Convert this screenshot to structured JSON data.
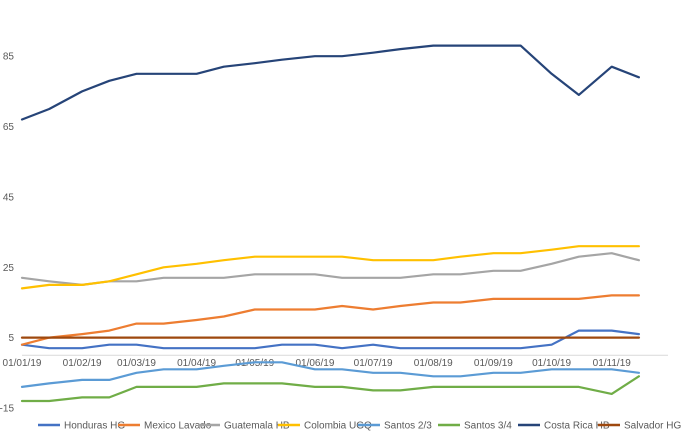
{
  "chart_data": {
    "type": "line",
    "title": "",
    "xlabel": "",
    "ylabel": "",
    "ylim": [
      -15,
      95
    ],
    "y_ticks": [
      -15,
      5,
      25,
      45,
      65,
      85
    ],
    "y_tick_labels": [
      "-15",
      "5",
      "25",
      "45",
      "65",
      "85"
    ],
    "x_tick_labels": [
      "01/01/19",
      "01/02/19",
      "01/03/19",
      "01/04/19",
      "01/05/19",
      "01/06/19",
      "01/07/19",
      "01/08/19",
      "01/09/19",
      "01/10/19",
      "01/11/19"
    ],
    "x": [
      "01/01/19",
      "15/01/19",
      "01/02/19",
      "15/02/19",
      "01/03/19",
      "15/03/19",
      "01/04/19",
      "15/04/19",
      "01/05/19",
      "15/05/19",
      "01/06/19",
      "15/06/19",
      "01/07/19",
      "15/07/19",
      "01/08/19",
      "15/08/19",
      "01/09/19",
      "15/09/19",
      "01/10/19",
      "15/10/19",
      "01/11/19",
      "15/11/19"
    ],
    "grid": false,
    "legend_position": "bottom",
    "series": [
      {
        "name": "Honduras HG",
        "color": "#4472C4",
        "values": [
          3,
          2,
          2,
          3,
          3,
          2,
          2,
          2,
          2,
          3,
          3,
          2,
          3,
          2,
          2,
          2,
          2,
          2,
          3,
          7,
          7,
          6
        ]
      },
      {
        "name": "Mexico Lavado",
        "color": "#ED7D31",
        "values": [
          3,
          5,
          6,
          7,
          9,
          9,
          10,
          11,
          13,
          13,
          13,
          14,
          13,
          14,
          15,
          15,
          16,
          16,
          16,
          16,
          17,
          17
        ]
      },
      {
        "name": "Guatemala HB",
        "color": "#A5A5A5",
        "values": [
          22,
          21,
          20,
          21,
          21,
          22,
          22,
          22,
          23,
          23,
          23,
          22,
          22,
          22,
          23,
          23,
          24,
          24,
          26,
          28,
          29,
          27
        ]
      },
      {
        "name": "Colombia UGQ",
        "color": "#FFC000",
        "values": [
          19,
          20,
          20,
          21,
          23,
          25,
          26,
          27,
          28,
          28,
          28,
          28,
          27,
          27,
          27,
          28,
          29,
          29,
          30,
          31,
          31,
          31
        ]
      },
      {
        "name": "Santos 2/3",
        "color": "#5B9BD5",
        "values": [
          -9,
          -8,
          -7,
          -7,
          -5,
          -4,
          -4,
          -3,
          -2,
          -2,
          -4,
          -4,
          -5,
          -5,
          -6,
          -6,
          -5,
          -5,
          -4,
          -4,
          -4,
          -5
        ]
      },
      {
        "name": "Santos 3/4",
        "color": "#70AD47",
        "values": [
          -13,
          -13,
          -12,
          -12,
          -9,
          -9,
          -9,
          -8,
          -8,
          -8,
          -9,
          -9,
          -10,
          -10,
          -9,
          -9,
          -9,
          -9,
          -9,
          -9,
          -11,
          -6
        ]
      },
      {
        "name": "Costa Rica HB",
        "color": "#264478",
        "values": [
          67,
          70,
          75,
          78,
          80,
          80,
          80,
          82,
          83,
          84,
          85,
          85,
          86,
          87,
          88,
          88,
          88,
          88,
          80,
          74,
          82,
          79
        ]
      },
      {
        "name": "Salvador HG",
        "color": "#9E480E",
        "values": [
          5,
          5,
          5,
          5,
          5,
          5,
          5,
          5,
          5,
          5,
          5,
          5,
          5,
          5,
          5,
          5,
          5,
          5,
          5,
          5,
          5,
          5
        ]
      }
    ]
  }
}
